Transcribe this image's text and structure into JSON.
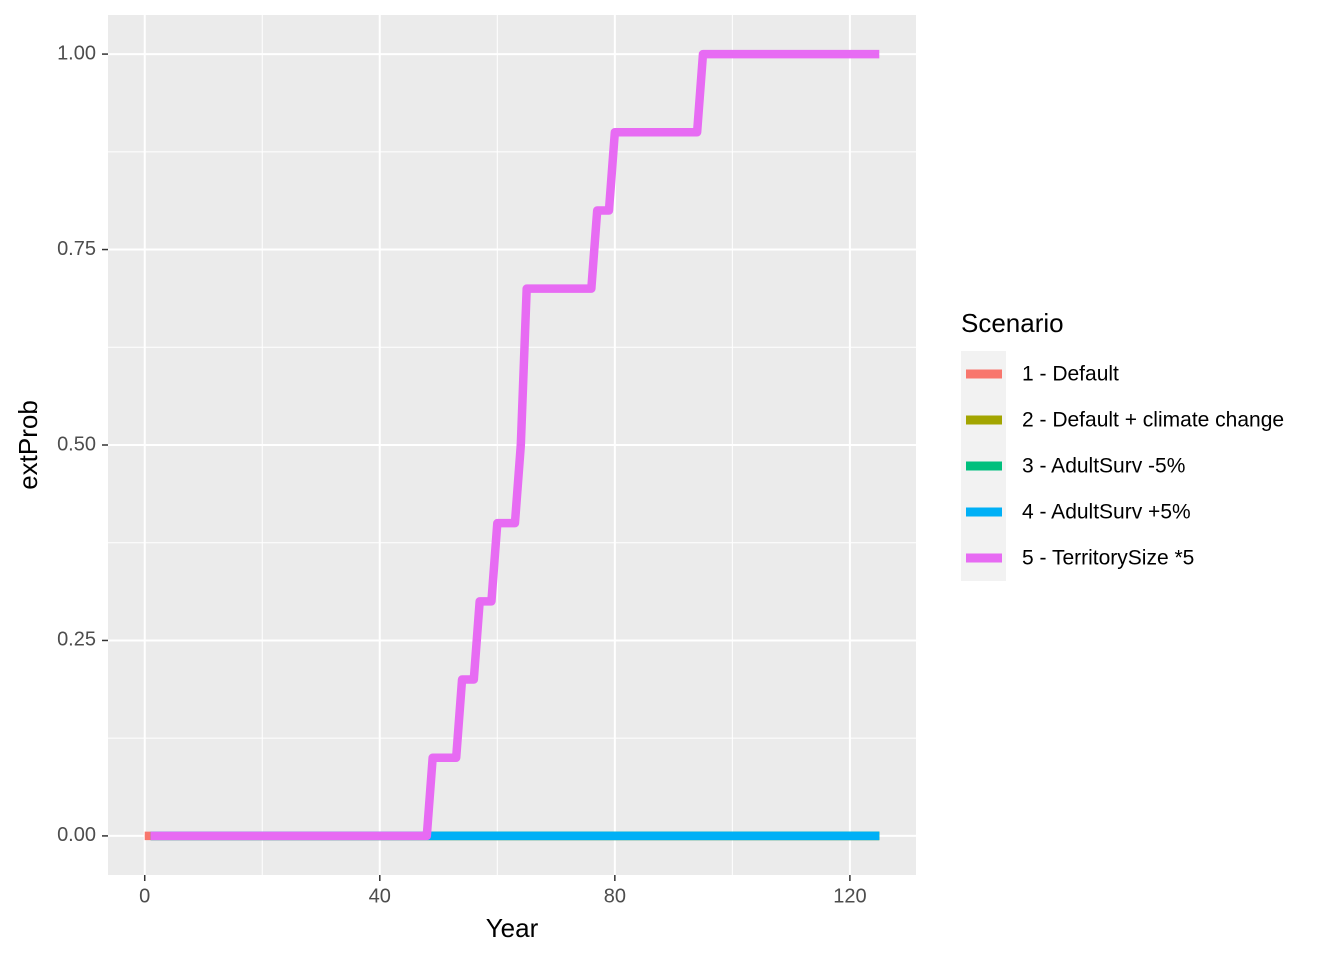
{
  "chart_data": {
    "type": "line",
    "x_label": "Year",
    "y_label": "extProb",
    "legend_title": "Scenario",
    "legend_position": "right",
    "grid": true,
    "xlim": [
      -6.25,
      131.25
    ],
    "ylim": [
      -0.05,
      1.05
    ],
    "xticks": [
      0,
      40,
      80,
      120
    ],
    "x_minor_ticks": [
      20,
      60,
      100
    ],
    "yticks": [
      {
        "value": 0,
        "label": "0.00"
      },
      {
        "value": 0.25,
        "label": "0.25"
      },
      {
        "value": 0.5,
        "label": "0.50"
      },
      {
        "value": 0.75,
        "label": "0.75"
      },
      {
        "value": 1,
        "label": "1.00"
      }
    ],
    "y_minor_ticks": [
      0.125,
      0.375,
      0.625,
      0.875
    ],
    "series": [
      {
        "name": "1 - Default",
        "color": "#F8766D",
        "x": [
          0,
          125
        ],
        "values": [
          0,
          0
        ]
      },
      {
        "name": "2 - Default + climate change",
        "color": "#A3A500",
        "x": [
          1,
          125
        ],
        "values": [
          0,
          0
        ]
      },
      {
        "name": "3 - AdultSurv -5%",
        "color": "#00BF7D",
        "x": [
          1,
          125
        ],
        "values": [
          0,
          0
        ]
      },
      {
        "name": "4 - AdultSurv +5%",
        "color": "#00B0F6",
        "x": [
          1,
          125
        ],
        "values": [
          0,
          0
        ]
      },
      {
        "name": "5 - TerritorySize *5",
        "color": "#E76BF3",
        "x": [
          1,
          48,
          49,
          53,
          54,
          56,
          57,
          59,
          60,
          63,
          64,
          65,
          76,
          77,
          79,
          80,
          94,
          95,
          125
        ],
        "values": [
          0,
          0,
          0.1,
          0.1,
          0.2,
          0.2,
          0.3,
          0.3,
          0.4,
          0.4,
          0.5,
          0.7,
          0.7,
          0.8,
          0.8,
          0.9,
          0.9,
          1,
          1
        ]
      }
    ]
  }
}
